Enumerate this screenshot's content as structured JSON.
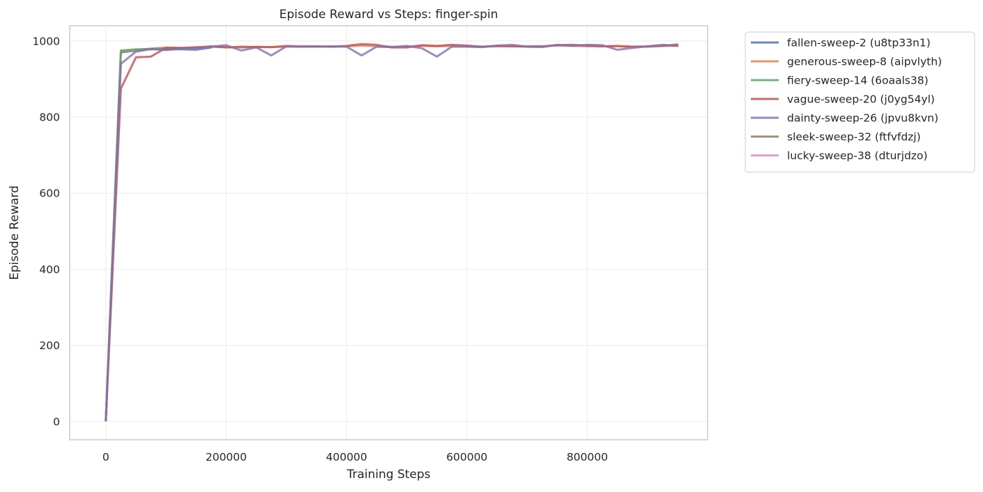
{
  "chart_data": {
    "type": "line",
    "title": "Episode Reward vs Steps: finger-spin",
    "xlabel": "Training Steps",
    "ylabel": "Episode Reward",
    "xlim": [
      -60000,
      1000000
    ],
    "ylim": [
      -48,
      1040
    ],
    "xticks": [
      0,
      200000,
      400000,
      600000,
      800000
    ],
    "yticks": [
      0,
      200,
      400,
      600,
      800,
      1000
    ],
    "grid": true,
    "legend_position": "outside-top-right",
    "series": [
      {
        "name": "fallen-sweep-2 (u8tp33n1)",
        "color": "#4c72b0",
        "x": [
          0,
          25000,
          50000,
          75000,
          100000,
          125000,
          150000,
          175000
        ],
        "y": [
          3,
          970,
          975,
          978,
          978,
          978,
          977,
          983
        ]
      },
      {
        "name": "generous-sweep-8 (aipvlyth)",
        "color": "#dd8452",
        "x": [
          0,
          25000,
          50000,
          75000,
          100000,
          125000,
          150000,
          175000,
          200000,
          225000,
          250000,
          275000,
          300000,
          325000,
          350000,
          375000,
          400000,
          425000,
          450000,
          475000,
          500000,
          525000,
          550000,
          575000,
          600000,
          625000,
          650000,
          675000,
          700000,
          725000,
          750000,
          775000,
          800000,
          825000,
          850000,
          875000,
          900000,
          925000,
          950000
        ],
        "y": [
          3,
          972,
          976,
          980,
          983,
          982,
          984,
          985,
          984,
          983,
          985,
          984,
          985,
          985,
          986,
          985,
          986,
          988,
          986,
          985,
          985,
          987,
          986,
          987,
          986,
          985,
          986,
          986,
          985,
          986,
          988,
          987,
          986,
          986,
          986,
          985,
          986,
          987,
          987
        ]
      },
      {
        "name": "fiery-sweep-14 (6oaals38)",
        "color": "#55a868",
        "x": [
          0,
          25000,
          50000,
          75000,
          100000,
          125000
        ],
        "y": [
          3,
          975,
          978,
          979,
          980,
          981
        ]
      },
      {
        "name": "vague-sweep-20 (j0yg54yl)",
        "color": "#c44e52",
        "x": [
          0,
          25000,
          50000,
          75000,
          100000,
          125000,
          150000,
          175000,
          200000,
          225000,
          250000,
          275000,
          300000,
          325000,
          350000,
          375000,
          400000,
          425000,
          450000,
          475000,
          500000,
          525000,
          550000,
          575000,
          600000,
          625000,
          650000,
          675000,
          700000,
          725000,
          750000,
          775000,
          800000,
          825000,
          850000,
          875000,
          900000,
          925000,
          950000
        ],
        "y": [
          3,
          875,
          957,
          959,
          982,
          982,
          983,
          986,
          983,
          985,
          984,
          984,
          987,
          986,
          986,
          985,
          987,
          992,
          990,
          983,
          983,
          989,
          987,
          990,
          988,
          985,
          987,
          986,
          986,
          986,
          989,
          990,
          988,
          986,
          987,
          985,
          985,
          987,
          991
        ]
      },
      {
        "name": "dainty-sweep-26 (jpvu8kvn)",
        "color": "#8172b3",
        "x": [
          0,
          25000,
          50000,
          75000,
          100000,
          125000,
          150000,
          175000,
          200000,
          225000,
          250000,
          275000,
          300000,
          325000,
          350000,
          375000,
          400000,
          425000,
          450000,
          475000,
          500000,
          525000,
          550000,
          575000,
          600000,
          625000,
          650000,
          675000,
          700000,
          725000,
          750000,
          775000,
          800000,
          825000,
          850000,
          875000,
          900000,
          925000,
          950000
        ],
        "y": [
          3,
          940,
          972,
          979,
          976,
          980,
          981,
          985,
          989,
          975,
          983,
          962,
          986,
          985,
          985,
          986,
          985,
          962,
          985,
          984,
          987,
          981,
          959,
          985,
          985,
          984,
          988,
          990,
          985,
          984,
          990,
          987,
          990,
          989,
          977,
          982,
          986,
          990,
          987
        ]
      },
      {
        "name": "sleek-sweep-32 (ftfvfdzj)",
        "color": "#937860",
        "x": [],
        "y": []
      },
      {
        "name": "lucky-sweep-38 (dturjdzo)",
        "color": "#da8bc3",
        "x": [],
        "y": []
      }
    ]
  }
}
